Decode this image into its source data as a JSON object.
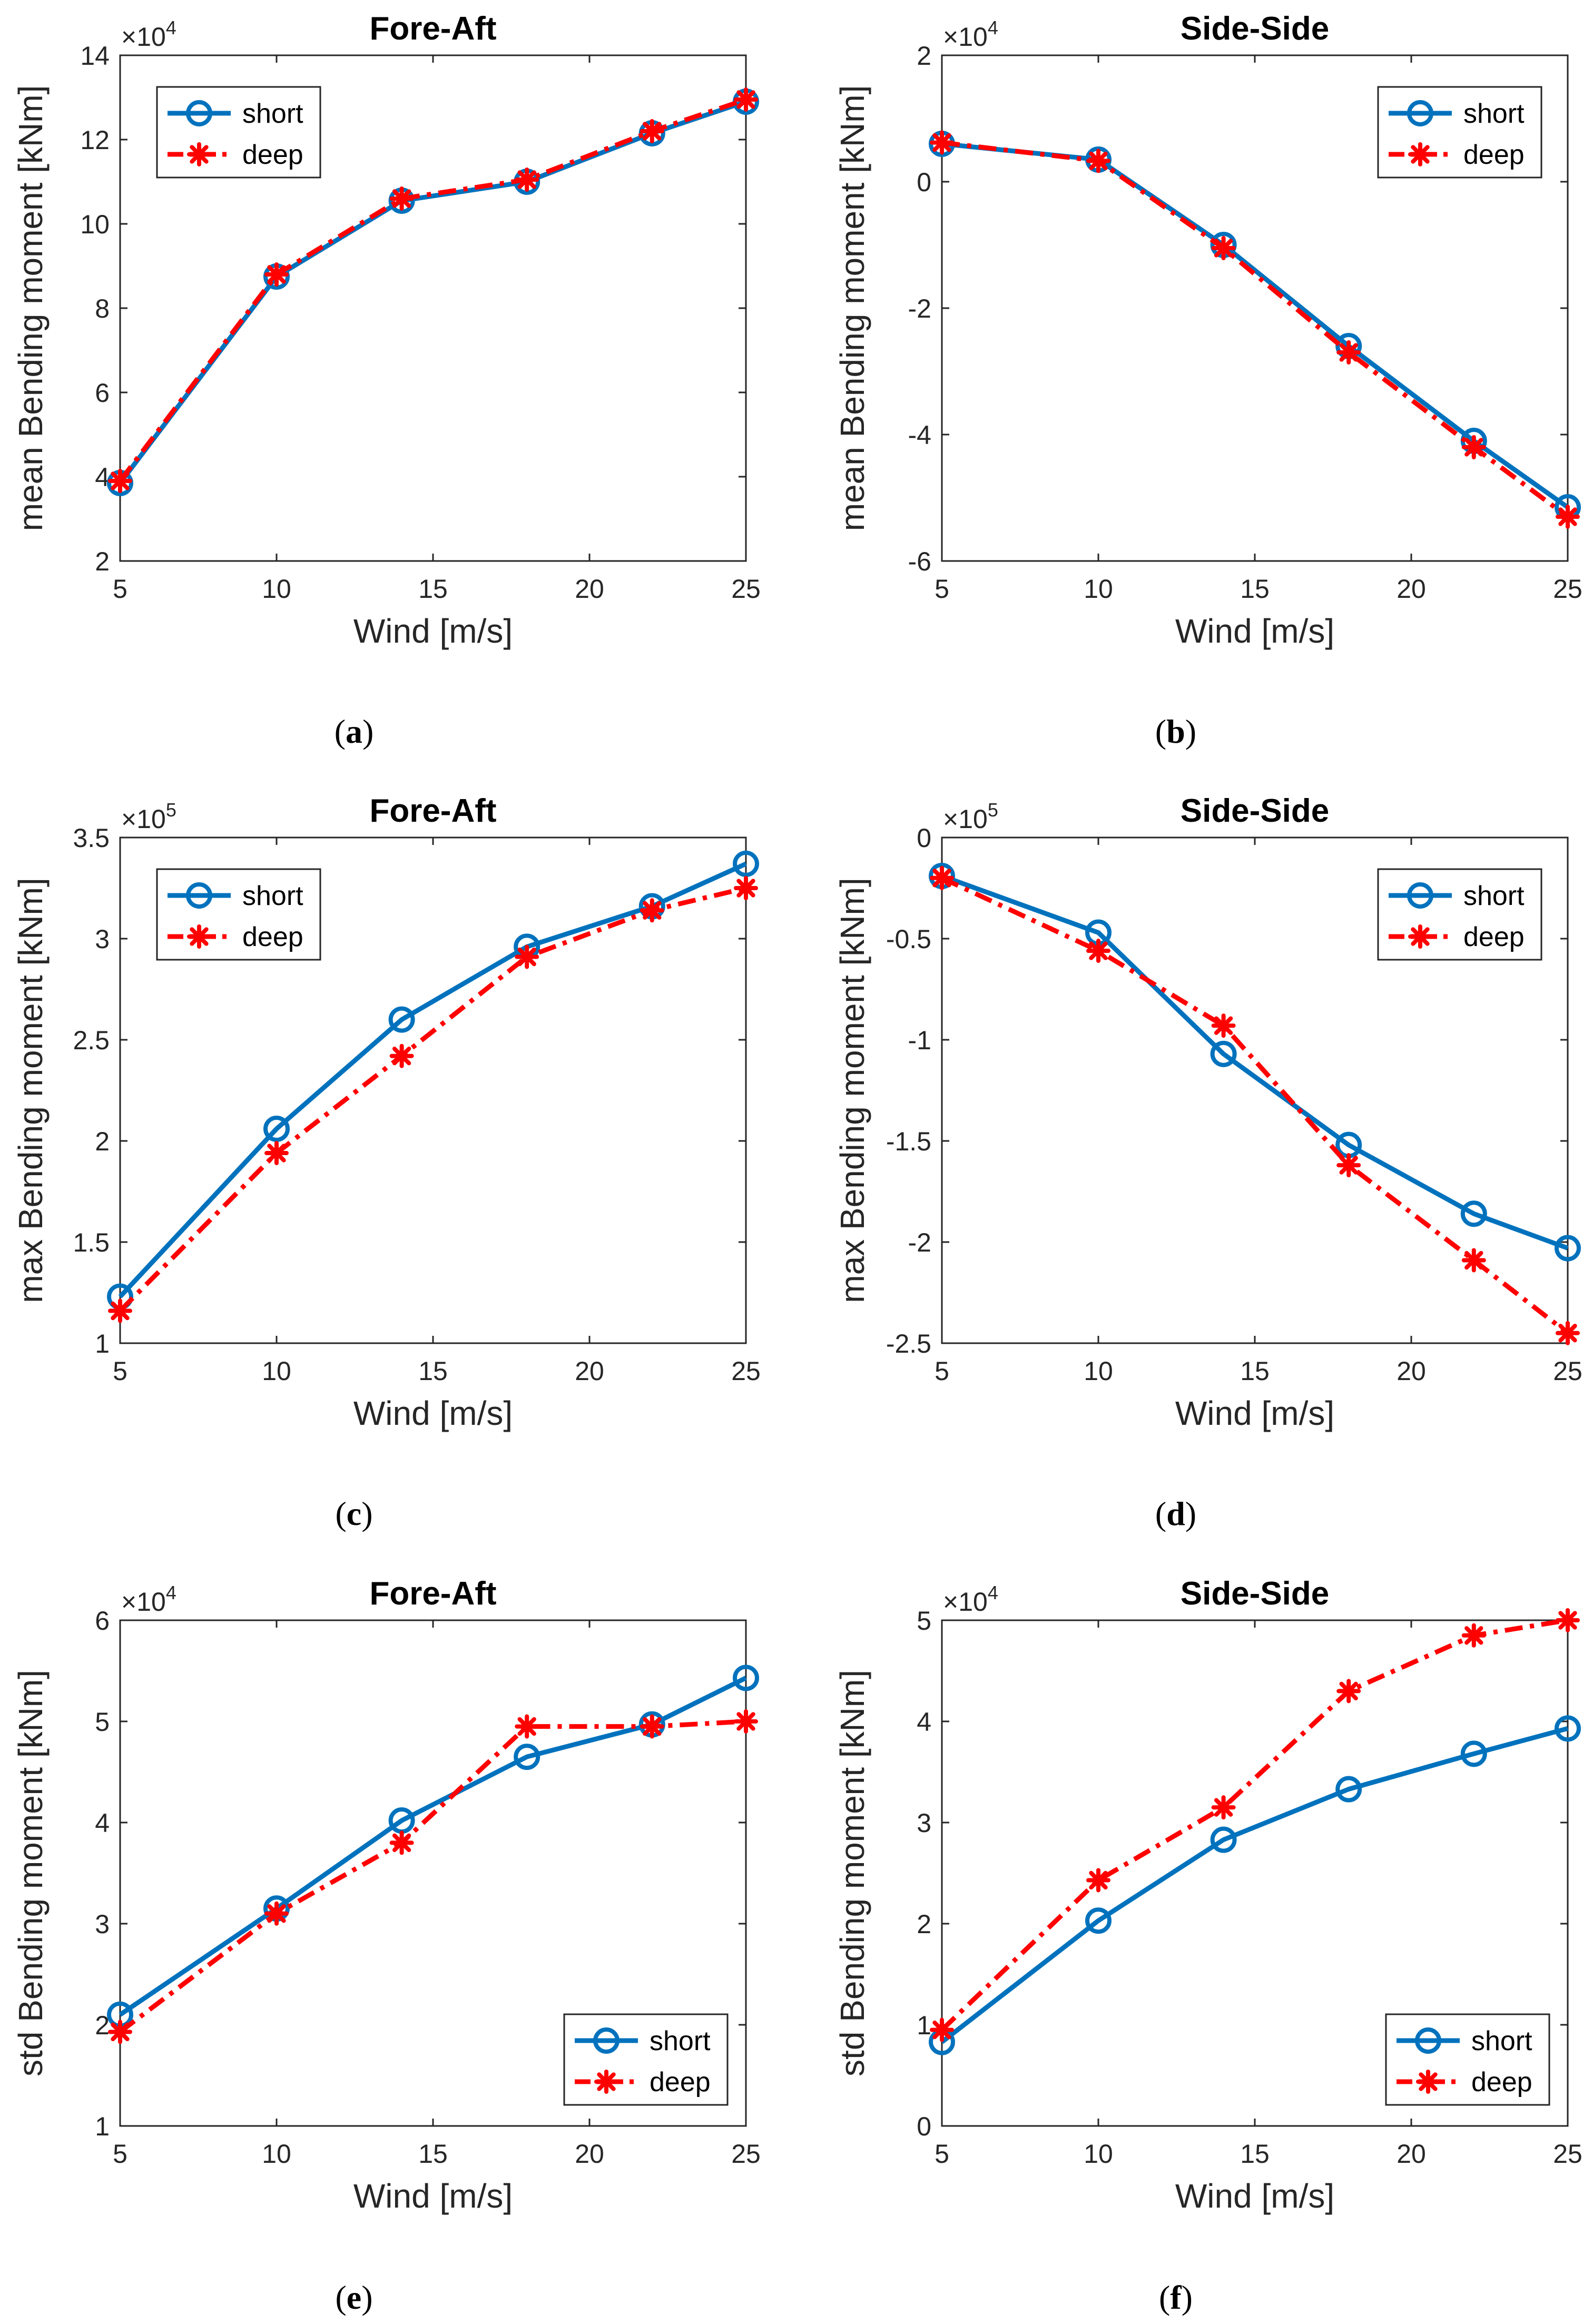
{
  "colors": {
    "short": "#0072BD",
    "deep": "#FF0000",
    "axis": "#262626"
  },
  "chart_data": [
    {
      "id": "a",
      "type": "line",
      "title": "Fore-Aft",
      "xlabel": "Wind [m/s]",
      "ylabel": "mean Bending moment [kNm]",
      "exponent_base": "×10",
      "exponent_power": "4",
      "x": [
        5,
        10,
        14,
        18,
        22,
        25
      ],
      "xlim": [
        5,
        25
      ],
      "ylim": [
        2,
        14
      ],
      "xticks": [
        5,
        10,
        15,
        20,
        25
      ],
      "xtick_labels": [
        "5",
        "10",
        "15",
        "20",
        "25"
      ],
      "yticks": [
        2,
        4,
        6,
        8,
        10,
        12,
        14
      ],
      "ytick_labels": [
        "2",
        "4",
        "6",
        "8",
        "10",
        "12",
        "14"
      ],
      "series": [
        {
          "name": "short",
          "values": [
            3.85,
            8.75,
            10.55,
            11.0,
            12.15,
            12.9
          ]
        },
        {
          "name": "deep",
          "values": [
            3.9,
            8.8,
            10.6,
            11.05,
            12.2,
            12.95
          ]
        }
      ],
      "legend": {
        "position": "top-left",
        "entries": [
          "short",
          "deep"
        ]
      },
      "caption": {
        "letter": "a",
        "open": "(",
        "close": ")"
      }
    },
    {
      "id": "b",
      "type": "line",
      "title": "Side-Side",
      "xlabel": "Wind [m/s]",
      "ylabel": "mean Bending moment [kNm]",
      "exponent_base": "×10",
      "exponent_power": "4",
      "x": [
        5,
        10,
        14,
        18,
        22,
        25
      ],
      "xlim": [
        5,
        25
      ],
      "ylim": [
        -6,
        2
      ],
      "xticks": [
        5,
        10,
        15,
        20,
        25
      ],
      "xtick_labels": [
        "5",
        "10",
        "15",
        "20",
        "25"
      ],
      "yticks": [
        -6,
        -4,
        -2,
        0,
        2
      ],
      "ytick_labels": [
        "-6",
        "-4",
        "-2",
        "0",
        "2"
      ],
      "series": [
        {
          "name": "short",
          "values": [
            0.6,
            0.35,
            -1.0,
            -2.6,
            -4.1,
            -5.15
          ]
        },
        {
          "name": "deep",
          "values": [
            0.62,
            0.33,
            -1.05,
            -2.7,
            -4.2,
            -5.3
          ]
        }
      ],
      "legend": {
        "position": "top-right",
        "entries": [
          "short",
          "deep"
        ]
      },
      "caption": {
        "letter": "b",
        "open": "(",
        "close": ")"
      }
    },
    {
      "id": "c",
      "type": "line",
      "title": "Fore-Aft",
      "xlabel": "Wind [m/s]",
      "ylabel": "max Bending moment [kNm]",
      "exponent_base": "×10",
      "exponent_power": "5",
      "x": [
        5,
        10,
        14,
        18,
        22,
        25
      ],
      "xlim": [
        5,
        25
      ],
      "ylim": [
        1,
        3.5
      ],
      "xticks": [
        5,
        10,
        15,
        20,
        25
      ],
      "xtick_labels": [
        "5",
        "10",
        "15",
        "20",
        "25"
      ],
      "yticks": [
        1,
        1.5,
        2,
        2.5,
        3,
        3.5
      ],
      "ytick_labels": [
        "1",
        "1.5",
        "2",
        "2.5",
        "3",
        "3.5"
      ],
      "series": [
        {
          "name": "short",
          "values": [
            1.23,
            2.06,
            2.6,
            2.96,
            3.16,
            3.37
          ]
        },
        {
          "name": "deep",
          "values": [
            1.16,
            1.94,
            2.42,
            2.91,
            3.14,
            3.25
          ]
        }
      ],
      "legend": {
        "position": "top-left",
        "entries": [
          "short",
          "deep"
        ]
      },
      "caption": {
        "letter": "c",
        "open": "(",
        "close": ")"
      }
    },
    {
      "id": "d",
      "type": "line",
      "title": "Side-Side",
      "xlabel": "Wind [m/s]",
      "ylabel": "max Bending moment [kNm]",
      "exponent_base": "×10",
      "exponent_power": "5",
      "x": [
        5,
        10,
        14,
        18,
        22,
        25
      ],
      "xlim": [
        5,
        25
      ],
      "ylim": [
        -2.5,
        0
      ],
      "xticks": [
        5,
        10,
        15,
        20,
        25
      ],
      "xtick_labels": [
        "5",
        "10",
        "15",
        "20",
        "25"
      ],
      "yticks": [
        -2.5,
        -2,
        -1.5,
        -1,
        -0.5,
        0
      ],
      "ytick_labels": [
        "-2.5",
        "-2",
        "-1.5",
        "-1",
        "-0.5",
        "0"
      ],
      "series": [
        {
          "name": "short",
          "values": [
            -0.19,
            -0.47,
            -1.07,
            -1.52,
            -1.86,
            -2.03
          ]
        },
        {
          "name": "deep",
          "values": [
            -0.2,
            -0.56,
            -0.93,
            -1.62,
            -2.09,
            -2.45
          ]
        }
      ],
      "legend": {
        "position": "top-right",
        "entries": [
          "short",
          "deep"
        ]
      },
      "caption": {
        "letter": "d",
        "open": "(",
        "close": ")"
      }
    },
    {
      "id": "e",
      "type": "line",
      "title": "Fore-Aft",
      "xlabel": "Wind [m/s]",
      "ylabel": "std Bending moment [kNm]",
      "exponent_base": "×10",
      "exponent_power": "4",
      "x": [
        5,
        10,
        14,
        18,
        22,
        25
      ],
      "xlim": [
        5,
        25
      ],
      "ylim": [
        1,
        6
      ],
      "xticks": [
        5,
        10,
        15,
        20,
        25
      ],
      "xtick_labels": [
        "5",
        "10",
        "15",
        "20",
        "25"
      ],
      "yticks": [
        1,
        2,
        3,
        4,
        5,
        6
      ],
      "ytick_labels": [
        "1",
        "2",
        "3",
        "4",
        "5",
        "6"
      ],
      "series": [
        {
          "name": "short",
          "values": [
            2.1,
            3.15,
            4.02,
            4.65,
            4.97,
            5.43
          ]
        },
        {
          "name": "deep",
          "values": [
            1.93,
            3.1,
            3.8,
            4.95,
            4.95,
            5.0
          ]
        }
      ],
      "legend": {
        "position": "bottom-right",
        "entries": [
          "short",
          "deep"
        ]
      },
      "caption": {
        "letter": "e",
        "open": "(",
        "close": ")"
      }
    },
    {
      "id": "f",
      "type": "line",
      "title": "Side-Side",
      "xlabel": "Wind [m/s]",
      "ylabel": "std Bending moment [kNm]",
      "exponent_base": "×10",
      "exponent_power": "4",
      "x": [
        5,
        10,
        14,
        18,
        22,
        25
      ],
      "xlim": [
        5,
        25
      ],
      "ylim": [
        0,
        5
      ],
      "xticks": [
        5,
        10,
        15,
        20,
        25
      ],
      "xtick_labels": [
        "5",
        "10",
        "15",
        "20",
        "25"
      ],
      "yticks": [
        0,
        1,
        2,
        3,
        4,
        5
      ],
      "ytick_labels": [
        "0",
        "1",
        "2",
        "3",
        "4",
        "5"
      ],
      "series": [
        {
          "name": "short",
          "values": [
            0.83,
            2.03,
            2.83,
            3.33,
            3.68,
            3.93
          ]
        },
        {
          "name": "deep",
          "values": [
            0.95,
            2.43,
            3.15,
            4.3,
            4.85,
            5.0
          ]
        }
      ],
      "legend": {
        "position": "bottom-right",
        "entries": [
          "short",
          "deep"
        ]
      },
      "caption": {
        "letter": "f",
        "open": "(",
        "close": ")"
      }
    }
  ]
}
